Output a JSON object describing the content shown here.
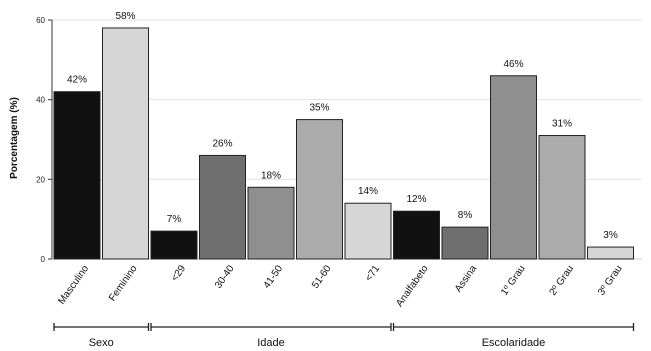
{
  "chart_data": {
    "type": "bar",
    "ylabel": "Porcentagem (%)",
    "ylim": [
      0,
      60
    ],
    "yticks": [
      0,
      20,
      40,
      60
    ],
    "grid": true,
    "bars": [
      {
        "category": "Masculino",
        "value": 42,
        "label": "42%",
        "group": "Sexo",
        "color": "#111111"
      },
      {
        "category": "Feminino",
        "value": 58,
        "label": "58%",
        "group": "Sexo",
        "color": "#d6d6d6"
      },
      {
        "category": "<29",
        "value": 7,
        "label": "7%",
        "group": "Idade",
        "color": "#111111"
      },
      {
        "category": "30-40",
        "value": 26,
        "label": "26%",
        "group": "Idade",
        "color": "#6f6f6f"
      },
      {
        "category": "41-50",
        "value": 18,
        "label": "18%",
        "group": "Idade",
        "color": "#8f8f8f"
      },
      {
        "category": "51-60",
        "value": 35,
        "label": "35%",
        "group": "Idade",
        "color": "#ababab"
      },
      {
        "category": "<71",
        "value": 14,
        "label": "14%",
        "group": "Idade",
        "color": "#d6d6d6"
      },
      {
        "category": "Analfabeto",
        "value": 12,
        "label": "12%",
        "group": "Escolaridade",
        "color": "#111111"
      },
      {
        "category": "Assina",
        "value": 8,
        "label": "8%",
        "group": "Escolaridade",
        "color": "#6f6f6f"
      },
      {
        "category": "1º Grau",
        "value": 46,
        "label": "46%",
        "group": "Escolaridade",
        "color": "#8f8f8f"
      },
      {
        "category": "2º Grau",
        "value": 31,
        "label": "31%",
        "group": "Escolaridade",
        "color": "#ababab"
      },
      {
        "category": "3º Grau",
        "value": 3,
        "label": "3%",
        "group": "Escolaridade",
        "color": "#d6d6d6"
      }
    ],
    "groups": [
      {
        "name": "Sexo",
        "first": 0,
        "last": 1
      },
      {
        "name": "Idade",
        "first": 2,
        "last": 6
      },
      {
        "name": "Escolaridade",
        "first": 7,
        "last": 11
      }
    ]
  }
}
